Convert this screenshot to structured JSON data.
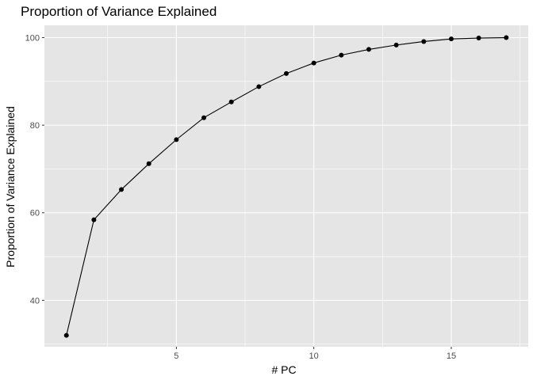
{
  "chart_data": {
    "type": "line",
    "title": "Proportion of Variance Explained",
    "xlabel": "# PC",
    "ylabel": "Proportion of Variance Explained",
    "xlim": [
      0.2,
      17.8
    ],
    "ylim": [
      29.4,
      102.8
    ],
    "x_ticks": [
      5,
      10,
      15
    ],
    "y_ticks": [
      40,
      60,
      80,
      100
    ],
    "x_minor": [
      2.5,
      7.5,
      12.5,
      17.5
    ],
    "y_minor": [
      30,
      50,
      70,
      90
    ],
    "grid": true,
    "show_points": true,
    "colors": {
      "panel": "#e5e5e5",
      "grid": "#ffffff",
      "line": "#000000",
      "text": "#000000",
      "tick_text": "#4d4d4d",
      "tick_mark": "#333333"
    },
    "series": [
      {
        "x": [
          1,
          2,
          3,
          4,
          5,
          6,
          7,
          8,
          9,
          10,
          11,
          12,
          13,
          14,
          15,
          16,
          17
        ],
        "values": [
          32.0,
          58.4,
          65.3,
          71.2,
          76.7,
          81.7,
          85.3,
          88.8,
          91.8,
          94.2,
          96.0,
          97.3,
          98.3,
          99.1,
          99.7,
          99.9,
          100.0
        ]
      }
    ]
  }
}
